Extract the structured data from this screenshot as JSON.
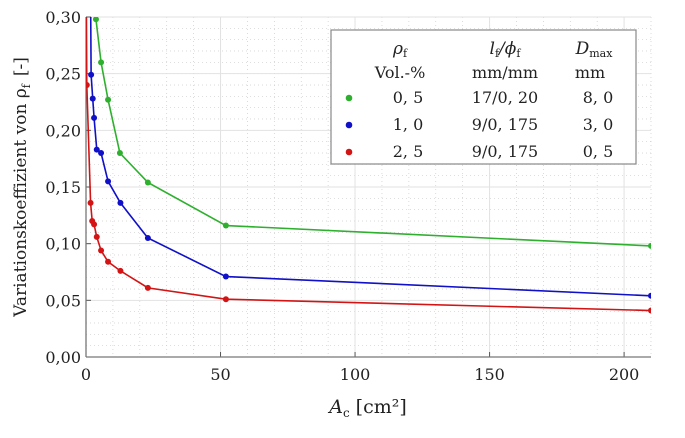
{
  "chart_data": {
    "type": "line",
    "xlabel": "A_c [cm²]",
    "xlabel_main": "A",
    "xlabel_sub": "c",
    "xlabel_unit": "[cm²]",
    "ylabel": "Variationskoeffizient von ρ_f [-]",
    "ylabel_main": "Variationskoeffizient von ρ",
    "ylabel_sub": "f",
    "ylabel_unit": "[-]",
    "xlim": [
      0,
      210
    ],
    "ylim": [
      0,
      0.3
    ],
    "xticks": [
      0,
      50,
      100,
      150,
      200
    ],
    "xtick_labels": [
      "0",
      "50",
      "100",
      "150",
      "200"
    ],
    "yticks": [
      0,
      0.05,
      0.1,
      0.15,
      0.2,
      0.25,
      0.3
    ],
    "ytick_labels": [
      "0,00",
      "0,05",
      "0,10",
      "0,15",
      "0,20",
      "0,25",
      "0,30"
    ],
    "grid": true,
    "legend_placement": "top-right",
    "legend": {
      "headers": [
        {
          "main": "ρ",
          "sub": "f",
          "unit": "Vol.-%"
        },
        {
          "main": "l",
          "sub": "f",
          "mid": "/ϕ",
          "sub2": "f",
          "unit": "mm/mm"
        },
        {
          "main": "D",
          "sub": "max",
          "unit": "mm"
        }
      ]
    },
    "series": [
      {
        "name": "0,5 Vol.-%",
        "color": "#2eb02e",
        "rho": "0, 5",
        "lphi": "17/0, 20",
        "dmax": "8, 0",
        "extends_above": false,
        "x": [
          3.7,
          5.6,
          8.2,
          12.6,
          23,
          52,
          210
        ],
        "y": [
          0.298,
          0.26,
          0.227,
          0.18,
          0.154,
          0.116,
          0.098
        ]
      },
      {
        "name": "1,0 Vol.-%",
        "color": "#1010c8",
        "rho": "1, 0",
        "lphi": "9/0, 175",
        "dmax": "3, 0",
        "extends_above": true,
        "x": [
          1.9,
          2.5,
          3.0,
          4.0,
          5.6,
          8.2,
          12.8,
          23,
          52,
          210
        ],
        "y": [
          0.249,
          0.228,
          0.211,
          0.183,
          0.18,
          0.155,
          0.136,
          0.105,
          0.071,
          0.054
        ]
      },
      {
        "name": "2,5 Vol.-%",
        "color": "#d41414",
        "rho": "2, 5",
        "lphi": "9/0, 175",
        "dmax": "0, 5",
        "extends_above": true,
        "x": [
          0.3,
          1.7,
          2.3,
          3.0,
          4.0,
          5.6,
          8.2,
          12.8,
          23,
          52,
          210
        ],
        "y": [
          0.24,
          0.136,
          0.12,
          0.117,
          0.106,
          0.094,
          0.084,
          0.076,
          0.061,
          0.051,
          0.041
        ]
      }
    ]
  }
}
